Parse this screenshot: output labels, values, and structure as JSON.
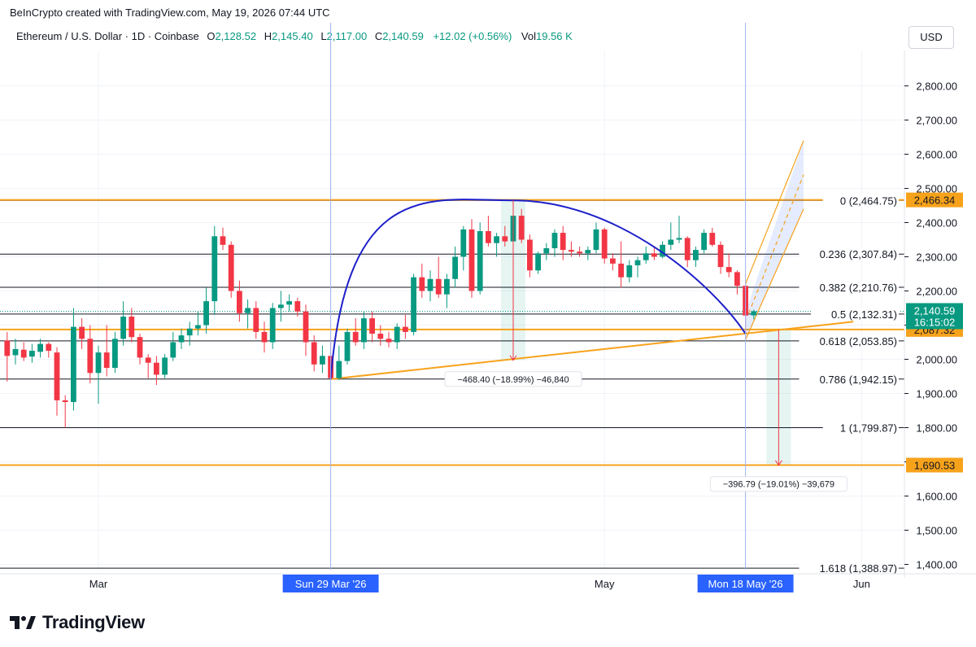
{
  "header": {
    "credit": "BeInCrypto created with TradingView.com, May 19, 2026 07:44 UTC",
    "symbol": "Ethereum / U.S. Dollar · 1D · Coinbase",
    "ohlc": {
      "o_label": "O",
      "o": "2,128.52",
      "h_label": "H",
      "h": "2,145.40",
      "l_label": "L",
      "l": "2,117.00",
      "c_label": "C",
      "c": "2,140.59",
      "change": "+12.02 (+0.56%)"
    },
    "vol_label": "Vol",
    "vol": "19.56 K",
    "currency": "USD"
  },
  "footer": {
    "brand": "TradingView"
  },
  "colors": {
    "up": "#089981",
    "down": "#f23645",
    "fib": "#131722",
    "orange": "#f7a21b",
    "arc": "#1d1fc9",
    "crosshair": "#9db2f1",
    "label_blue": "#2962ff"
  },
  "chart_data": {
    "type": "candlestick",
    "y_axis": {
      "range": [
        1385,
        2900
      ],
      "ticks": [
        1400,
        1500,
        1600,
        1700,
        1800,
        1900,
        2000,
        2100,
        2200,
        2300,
        2400,
        2500,
        2600,
        2700,
        2800
      ],
      "tick_labels": [
        "1,400.00",
        "1,500.00",
        "1,600.00",
        "1,700.00",
        "1,800.00",
        "1,900.00",
        "2,000.00",
        "2,100.00",
        "2,200.00",
        "2,300.00",
        "2,400.00",
        "2,500.00",
        "2,600.00",
        "2,700.00",
        "2,800.00"
      ]
    },
    "x_axis": {
      "labels": [
        {
          "day": 0,
          "text": "Mar"
        },
        {
          "day": 61,
          "text": "May"
        },
        {
          "day": 92,
          "text": "Jun"
        }
      ],
      "highlighted": [
        {
          "day": 28,
          "text": "Sun 29 Mar '26"
        },
        {
          "day": 78,
          "text": "Mon 18 May '26"
        }
      ]
    },
    "candles": [
      {
        "day": -11,
        "o": 2055,
        "h": 2080,
        "l": 1935,
        "c": 2010
      },
      {
        "day": -10,
        "o": 2012,
        "h": 2060,
        "l": 1985,
        "c": 2030
      },
      {
        "day": -9,
        "o": 2028,
        "h": 2050,
        "l": 1995,
        "c": 2005
      },
      {
        "day": -8,
        "o": 2008,
        "h": 2045,
        "l": 1990,
        "c": 2025
      },
      {
        "day": -7,
        "o": 2022,
        "h": 2060,
        "l": 2005,
        "c": 2045
      },
      {
        "day": -6,
        "o": 2045,
        "h": 2050,
        "l": 2005,
        "c": 2025
      },
      {
        "day": -5,
        "o": 2020,
        "h": 2035,
        "l": 1835,
        "c": 1880
      },
      {
        "day": -4,
        "o": 1880,
        "h": 1895,
        "l": 1800,
        "c": 1875
      },
      {
        "day": -3,
        "o": 1875,
        "h": 2150,
        "l": 1850,
        "c": 2095
      },
      {
        "day": -2,
        "o": 2095,
        "h": 2120,
        "l": 2030,
        "c": 2060
      },
      {
        "day": -1,
        "o": 2060,
        "h": 2100,
        "l": 1930,
        "c": 1960
      },
      {
        "day": 0,
        "o": 1960,
        "h": 2040,
        "l": 1870,
        "c": 2020
      },
      {
        "day": 1,
        "o": 2020,
        "h": 2100,
        "l": 1950,
        "c": 1975
      },
      {
        "day": 2,
        "o": 1975,
        "h": 2080,
        "l": 1960,
        "c": 2060
      },
      {
        "day": 3,
        "o": 2060,
        "h": 2170,
        "l": 2040,
        "c": 2125
      },
      {
        "day": 4,
        "o": 2125,
        "h": 2150,
        "l": 2050,
        "c": 2065
      },
      {
        "day": 5,
        "o": 2065,
        "h": 2075,
        "l": 1985,
        "c": 2005
      },
      {
        "day": 6,
        "o": 2005,
        "h": 2015,
        "l": 1945,
        "c": 1990
      },
      {
        "day": 7,
        "o": 1990,
        "h": 2010,
        "l": 1925,
        "c": 1955
      },
      {
        "day": 8,
        "o": 1955,
        "h": 2015,
        "l": 1945,
        "c": 2005
      },
      {
        "day": 9,
        "o": 2005,
        "h": 2080,
        "l": 1995,
        "c": 2050
      },
      {
        "day": 10,
        "o": 2050,
        "h": 2090,
        "l": 2030,
        "c": 2070
      },
      {
        "day": 11,
        "o": 2070,
        "h": 2110,
        "l": 2040,
        "c": 2090
      },
      {
        "day": 12,
        "o": 2090,
        "h": 2140,
        "l": 2070,
        "c": 2100
      },
      {
        "day": 13,
        "o": 2100,
        "h": 2210,
        "l": 2075,
        "c": 2170
      },
      {
        "day": 14,
        "o": 2170,
        "h": 2390,
        "l": 2130,
        "c": 2360
      },
      {
        "day": 15,
        "o": 2360,
        "h": 2385,
        "l": 2320,
        "c": 2335
      },
      {
        "day": 16,
        "o": 2335,
        "h": 2345,
        "l": 2180,
        "c": 2200
      },
      {
        "day": 17,
        "o": 2200,
        "h": 2230,
        "l": 2110,
        "c": 2135
      },
      {
        "day": 18,
        "o": 2135,
        "h": 2175,
        "l": 2090,
        "c": 2150
      },
      {
        "day": 19,
        "o": 2150,
        "h": 2170,
        "l": 2060,
        "c": 2080
      },
      {
        "day": 20,
        "o": 2080,
        "h": 2110,
        "l": 2020,
        "c": 2050
      },
      {
        "day": 21,
        "o": 2050,
        "h": 2165,
        "l": 2030,
        "c": 2150
      },
      {
        "day": 22,
        "o": 2150,
        "h": 2200,
        "l": 2110,
        "c": 2160
      },
      {
        "day": 23,
        "o": 2160,
        "h": 2190,
        "l": 2140,
        "c": 2170
      },
      {
        "day": 24,
        "o": 2170,
        "h": 2180,
        "l": 2125,
        "c": 2140
      },
      {
        "day": 25,
        "o": 2140,
        "h": 2160,
        "l": 2010,
        "c": 2050
      },
      {
        "day": 26,
        "o": 2050,
        "h": 2070,
        "l": 1965,
        "c": 1985
      },
      {
        "day": 27,
        "o": 1985,
        "h": 2040,
        "l": 1960,
        "c": 2010
      },
      {
        "day": 28,
        "o": 2010,
        "h": 2060,
        "l": 1940,
        "c": 1945
      },
      {
        "day": 29,
        "o": 1945,
        "h": 2040,
        "l": 1940,
        "c": 1995
      },
      {
        "day": 30,
        "o": 1995,
        "h": 2090,
        "l": 1985,
        "c": 2080
      },
      {
        "day": 31,
        "o": 2080,
        "h": 2120,
        "l": 2040,
        "c": 2050
      },
      {
        "day": 32,
        "o": 2050,
        "h": 2140,
        "l": 2030,
        "c": 2120
      },
      {
        "day": 33,
        "o": 2120,
        "h": 2140,
        "l": 2050,
        "c": 2075
      },
      {
        "day": 34,
        "o": 2075,
        "h": 2100,
        "l": 2040,
        "c": 2060
      },
      {
        "day": 35,
        "o": 2060,
        "h": 2080,
        "l": 2035,
        "c": 2050
      },
      {
        "day": 36,
        "o": 2050,
        "h": 2105,
        "l": 2030,
        "c": 2095
      },
      {
        "day": 37,
        "o": 2095,
        "h": 2130,
        "l": 2060,
        "c": 2080
      },
      {
        "day": 38,
        "o": 2080,
        "h": 2250,
        "l": 2070,
        "c": 2240
      },
      {
        "day": 39,
        "o": 2240,
        "h": 2280,
        "l": 2180,
        "c": 2200
      },
      {
        "day": 40,
        "o": 2200,
        "h": 2260,
        "l": 2170,
        "c": 2235
      },
      {
        "day": 41,
        "o": 2235,
        "h": 2300,
        "l": 2180,
        "c": 2190
      },
      {
        "day": 42,
        "o": 2190,
        "h": 2250,
        "l": 2150,
        "c": 2235
      },
      {
        "day": 43,
        "o": 2235,
        "h": 2330,
        "l": 2210,
        "c": 2300
      },
      {
        "day": 44,
        "o": 2300,
        "h": 2390,
        "l": 2260,
        "c": 2380
      },
      {
        "day": 45,
        "o": 2380,
        "h": 2410,
        "l": 2180,
        "c": 2200
      },
      {
        "day": 46,
        "o": 2200,
        "h": 2400,
        "l": 2190,
        "c": 2375
      },
      {
        "day": 47,
        "o": 2375,
        "h": 2420,
        "l": 2330,
        "c": 2340
      },
      {
        "day": 48,
        "o": 2340,
        "h": 2370,
        "l": 2300,
        "c": 2360
      },
      {
        "day": 49,
        "o": 2360,
        "h": 2390,
        "l": 2330,
        "c": 2345
      },
      {
        "day": 50,
        "o": 2345,
        "h": 2460,
        "l": 2300,
        "c": 2420
      },
      {
        "day": 51,
        "o": 2420,
        "h": 2440,
        "l": 2340,
        "c": 2350
      },
      {
        "day": 52,
        "o": 2350,
        "h": 2365,
        "l": 2240,
        "c": 2260
      },
      {
        "day": 53,
        "o": 2260,
        "h": 2315,
        "l": 2250,
        "c": 2310
      },
      {
        "day": 54,
        "o": 2310,
        "h": 2340,
        "l": 2290,
        "c": 2325
      },
      {
        "day": 55,
        "o": 2325,
        "h": 2380,
        "l": 2300,
        "c": 2370
      },
      {
        "day": 56,
        "o": 2370,
        "h": 2390,
        "l": 2290,
        "c": 2320
      },
      {
        "day": 57,
        "o": 2320,
        "h": 2345,
        "l": 2300,
        "c": 2315
      },
      {
        "day": 58,
        "o": 2315,
        "h": 2330,
        "l": 2300,
        "c": 2310
      },
      {
        "day": 59,
        "o": 2310,
        "h": 2330,
        "l": 2290,
        "c": 2320
      },
      {
        "day": 60,
        "o": 2320,
        "h": 2400,
        "l": 2310,
        "c": 2380
      },
      {
        "day": 61,
        "o": 2380,
        "h": 2385,
        "l": 2280,
        "c": 2295
      },
      {
        "day": 62,
        "o": 2295,
        "h": 2310,
        "l": 2260,
        "c": 2280
      },
      {
        "day": 63,
        "o": 2280,
        "h": 2345,
        "l": 2210,
        "c": 2240
      },
      {
        "day": 64,
        "o": 2240,
        "h": 2290,
        "l": 2225,
        "c": 2275
      },
      {
        "day": 65,
        "o": 2275,
        "h": 2300,
        "l": 2240,
        "c": 2290
      },
      {
        "day": 66,
        "o": 2290,
        "h": 2330,
        "l": 2280,
        "c": 2310
      },
      {
        "day": 67,
        "o": 2310,
        "h": 2330,
        "l": 2290,
        "c": 2300
      },
      {
        "day": 68,
        "o": 2300,
        "h": 2345,
        "l": 2295,
        "c": 2335
      },
      {
        "day": 69,
        "o": 2335,
        "h": 2400,
        "l": 2320,
        "c": 2350
      },
      {
        "day": 70,
        "o": 2350,
        "h": 2420,
        "l": 2340,
        "c": 2355
      },
      {
        "day": 71,
        "o": 2355,
        "h": 2360,
        "l": 2270,
        "c": 2290
      },
      {
        "day": 72,
        "o": 2290,
        "h": 2330,
        "l": 2270,
        "c": 2320
      },
      {
        "day": 73,
        "o": 2320,
        "h": 2380,
        "l": 2310,
        "c": 2370
      },
      {
        "day": 74,
        "o": 2370,
        "h": 2385,
        "l": 2330,
        "c": 2335
      },
      {
        "day": 75,
        "o": 2335,
        "h": 2345,
        "l": 2250,
        "c": 2270
      },
      {
        "day": 76,
        "o": 2270,
        "h": 2310,
        "l": 2240,
        "c": 2255
      },
      {
        "day": 77,
        "o": 2255,
        "h": 2260,
        "l": 2190,
        "c": 2215
      },
      {
        "day": 78,
        "o": 2215,
        "h": 2220,
        "l": 2080,
        "c": 2128
      },
      {
        "day": 79,
        "o": 2128.52,
        "h": 2145.4,
        "l": 2117.0,
        "c": 2140.59
      }
    ],
    "fib_retracement": {
      "levels": [
        {
          "ratio": 0,
          "price": 2464.75,
          "label": "0 (2,464.75)"
        },
        {
          "ratio": 0.236,
          "price": 2307.84,
          "label": "0.236 (2,307.84)"
        },
        {
          "ratio": 0.382,
          "price": 2210.76,
          "label": "0.382 (2,210.76)"
        },
        {
          "ratio": 0.5,
          "price": 2132.31,
          "label": "0.5 (2,132.31)"
        },
        {
          "ratio": 0.618,
          "price": 2053.85,
          "label": "0.618 (2,053.85)"
        },
        {
          "ratio": 0.786,
          "price": 1942.15,
          "label": "0.786 (1,942.15)"
        },
        {
          "ratio": 1,
          "price": 1799.87,
          "label": "1 (1,799.87)"
        },
        {
          "ratio": 1.618,
          "price": 1388.97,
          "label": "1.618 (1,388.97)"
        }
      ]
    },
    "horizontal_levels": [
      {
        "price": 2466.34,
        "label": "2,466.34"
      },
      {
        "price": 2087.32,
        "label": "2,087.32"
      },
      {
        "price": 1690.53,
        "label": "1,690.53"
      }
    ],
    "current_price": {
      "price": 2140.59,
      "label": "2,140.59",
      "countdown": "16:15:02"
    },
    "trendline": {
      "from": {
        "day": 28,
        "price": 1942
      },
      "to": {
        "day": 91,
        "price": 2110
      }
    },
    "arc": {
      "from": {
        "day": 28,
        "price": 1942
      },
      "peak": {
        "day": 50,
        "price": 2465
      },
      "to": {
        "day": 78,
        "price": 2075
      }
    },
    "measurements": [
      {
        "day": 50,
        "from": 2465,
        "to": 1997,
        "label": "−468.40 (−18.99%) −46,840"
      },
      {
        "day": 82,
        "from": 2087,
        "to": 1690,
        "label": "−396.79 (−19.01%) −39,679"
      }
    ],
    "projection_channel": {
      "start": {
        "day": 78,
        "price": 2087
      },
      "end": {
        "day": 85,
        "price": 2540
      }
    }
  }
}
